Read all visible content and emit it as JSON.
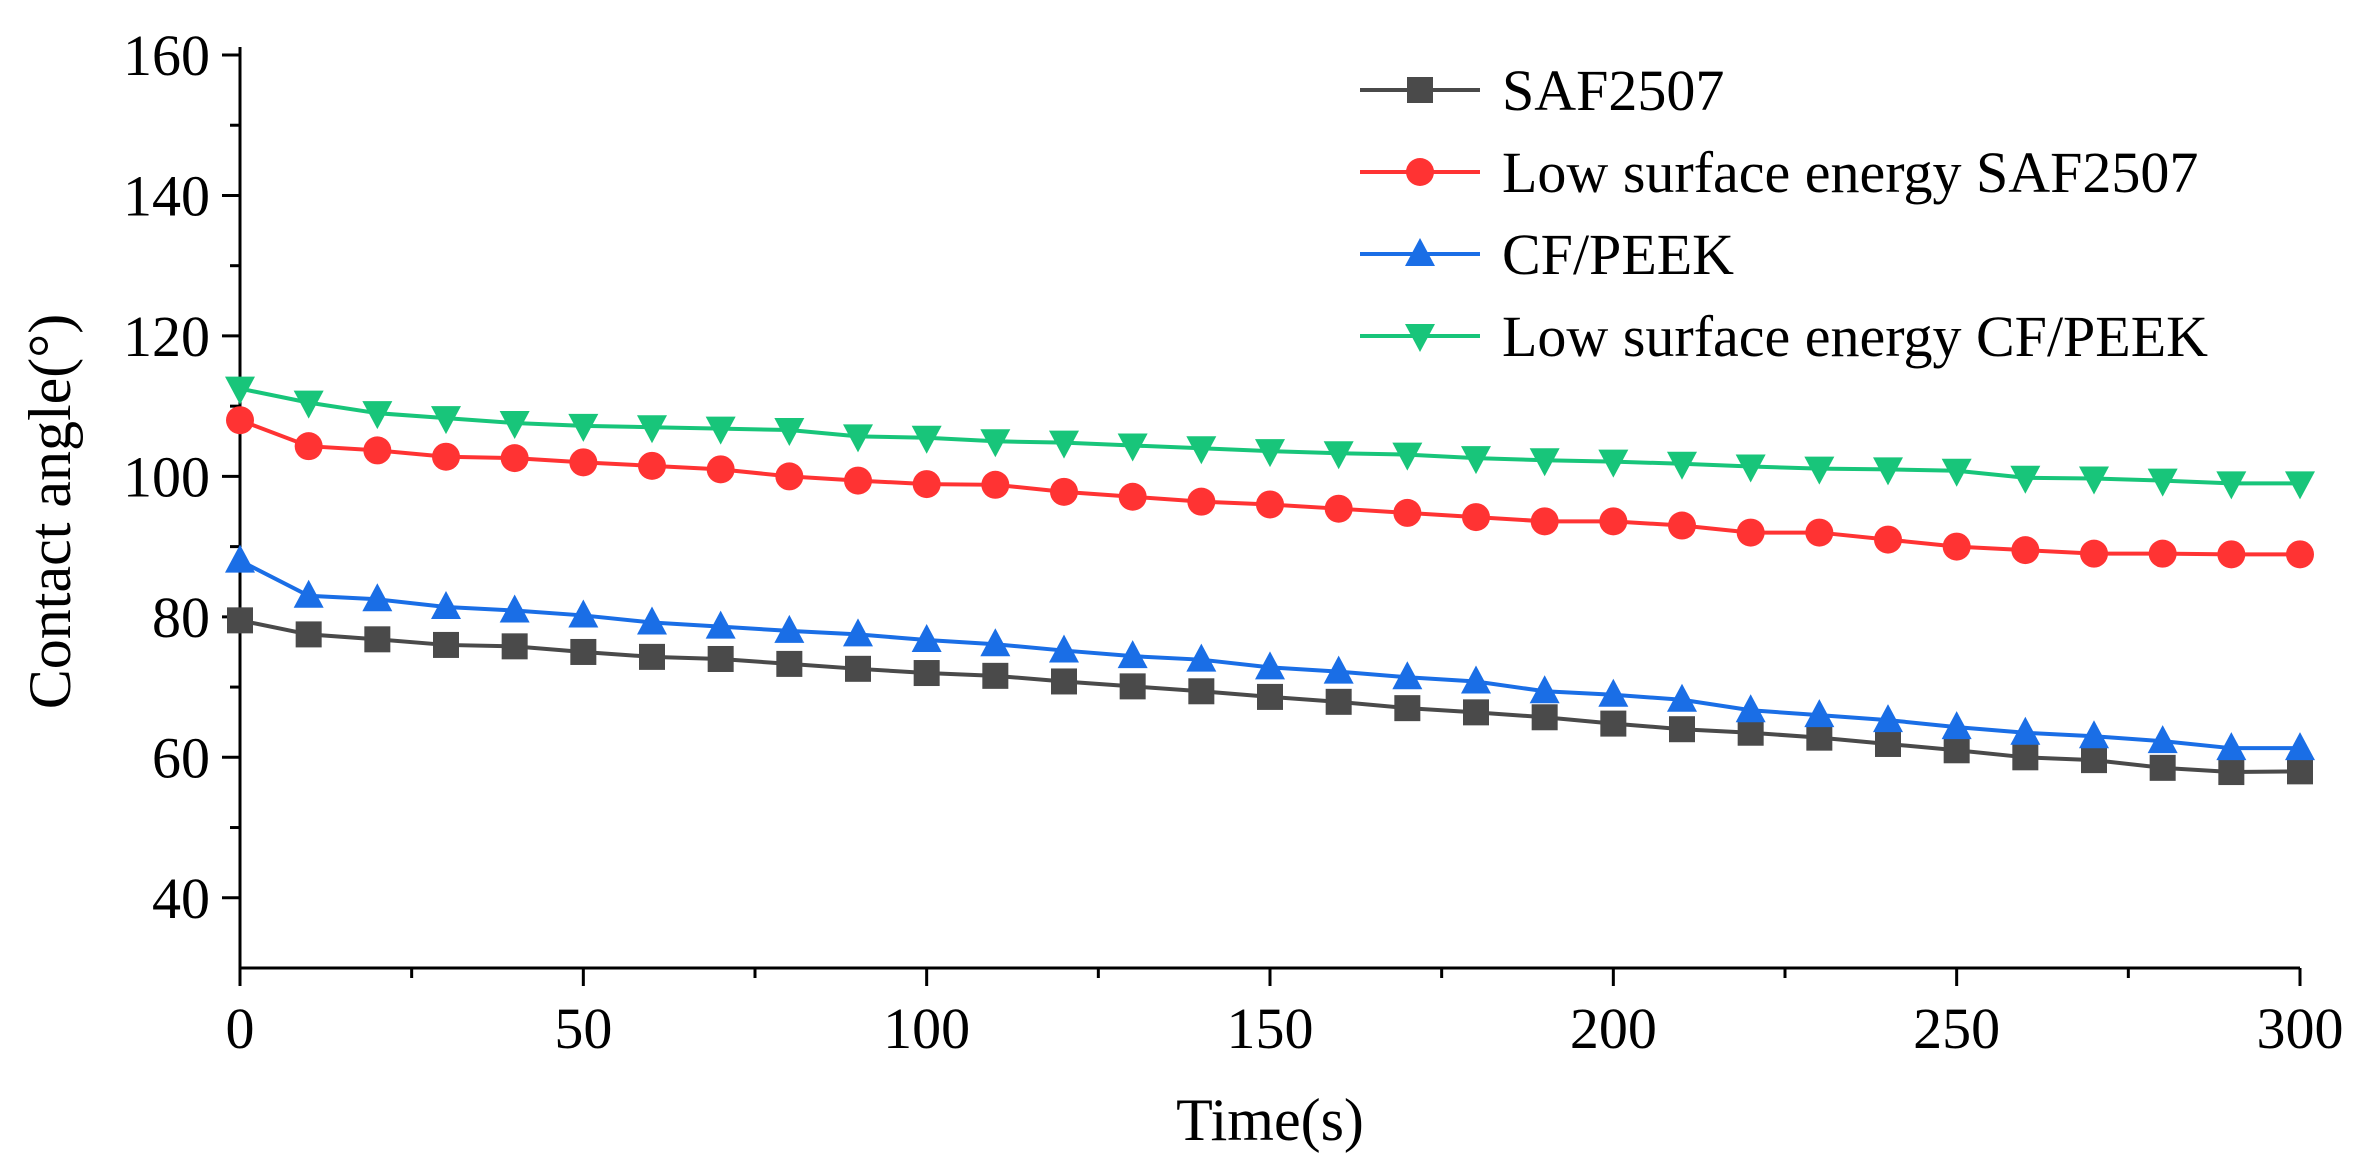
{
  "chart_data": {
    "type": "line",
    "title": "",
    "xlabel": "Time(s)",
    "ylabel": "Contact angle(°)",
    "xlim": [
      0,
      300
    ],
    "ylim": [
      30,
      160
    ],
    "x_ticks": [
      0,
      50,
      100,
      150,
      200,
      250,
      300
    ],
    "y_ticks": [
      40,
      60,
      80,
      100,
      120,
      140,
      160
    ],
    "grid": false,
    "legend_position": "top-right",
    "x": [
      0,
      10,
      20,
      30,
      40,
      50,
      60,
      70,
      80,
      90,
      100,
      110,
      120,
      130,
      140,
      150,
      160,
      170,
      180,
      190,
      200,
      210,
      220,
      230,
      240,
      250,
      260,
      270,
      280,
      290,
      300
    ],
    "series": [
      {
        "name": "SAF2507",
        "color": "#4a4a4a",
        "marker": "square",
        "values": [
          79.5,
          77.5,
          76.8,
          76,
          75.8,
          75,
          74.3,
          74,
          73.3,
          72.6,
          72,
          71.6,
          70.8,
          70.1,
          69.4,
          68.6,
          67.9,
          67,
          66.4,
          65.7,
          64.8,
          64,
          63.5,
          62.8,
          61.9,
          61,
          60,
          59.6,
          58.5,
          57.9,
          58
        ]
      },
      {
        "name": "Low surface energy SAF2507",
        "color": "#ff3333",
        "marker": "circle",
        "values": [
          108,
          104.3,
          103.7,
          102.8,
          102.6,
          102,
          101.5,
          101,
          100,
          99.4,
          98.9,
          98.8,
          97.8,
          97.1,
          96.4,
          96,
          95.4,
          94.8,
          94.2,
          93.6,
          93.6,
          93,
          92,
          92,
          91,
          90,
          89.5,
          89,
          89,
          88.9,
          88.9
        ]
      },
      {
        "name": "CF/PEEK",
        "color": "#1a6ee6",
        "marker": "triangle-up",
        "values": [
          88,
          83,
          82.5,
          81.4,
          80.9,
          80.2,
          79.2,
          78.6,
          78,
          77.5,
          76.7,
          76.1,
          75.2,
          74.4,
          73.9,
          72.8,
          72.2,
          71.4,
          70.8,
          69.4,
          68.9,
          68.2,
          66.7,
          66,
          65.3,
          64.3,
          63.5,
          63,
          62.3,
          61.3,
          61.3
        ]
      },
      {
        "name": "Low surface energy CF/PEEK",
        "color": "#18c57a",
        "marker": "triangle-down",
        "values": [
          112.5,
          110.5,
          109,
          108.3,
          107.6,
          107.2,
          107,
          106.8,
          106.6,
          105.7,
          105.5,
          105,
          104.8,
          104.4,
          104,
          103.6,
          103.3,
          103.1,
          102.6,
          102.3,
          102.1,
          101.8,
          101.4,
          101.1,
          101,
          100.8,
          99.8,
          99.7,
          99.4,
          99,
          99
        ]
      }
    ]
  }
}
